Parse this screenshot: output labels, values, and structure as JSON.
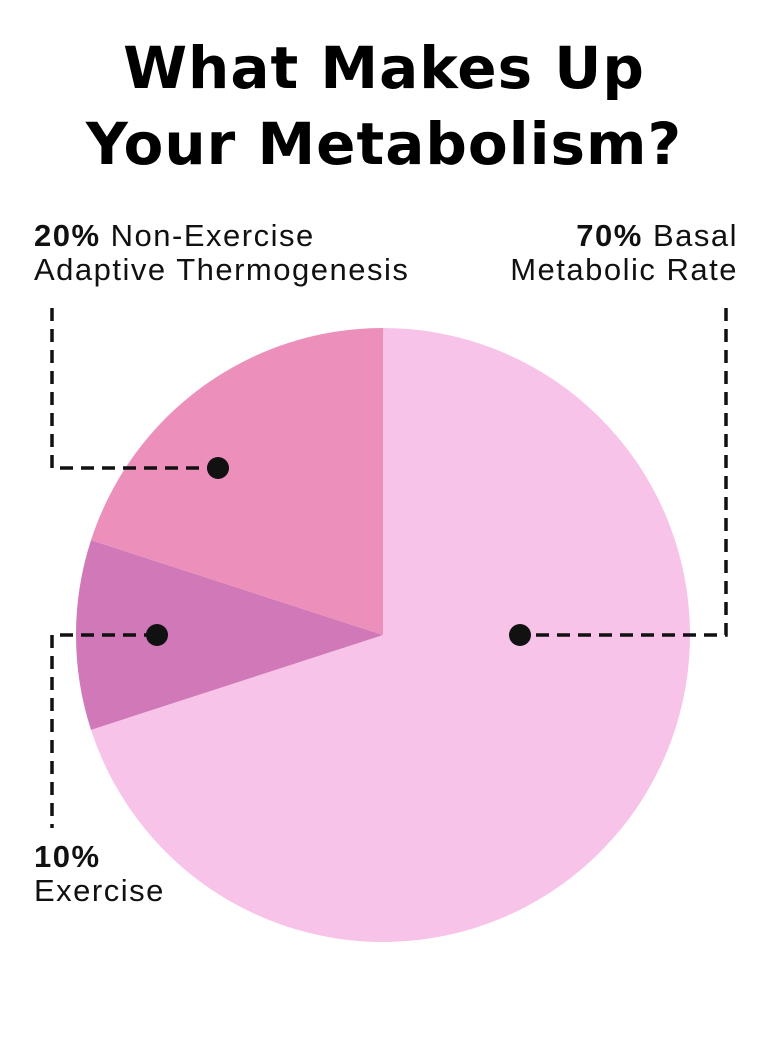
{
  "title": {
    "line1": "What Makes Up",
    "line2": "Your Metabolism?"
  },
  "chart_data": {
    "type": "pie",
    "title": "What Makes Up Your Metabolism?",
    "slices": [
      {
        "key": "bmr",
        "label": "Basal Metabolic Rate",
        "percent_label": "70%",
        "value": 70,
        "color": "#f7c3e8"
      },
      {
        "key": "exercise",
        "label": "Exercise",
        "percent_label": "10%",
        "value": 10,
        "color": "#d078b8"
      },
      {
        "key": "nea",
        "label": "Non-Exercise Adaptive Thermogenesis",
        "percent_label": "20%",
        "value": 20,
        "color": "#ec90bb"
      }
    ]
  },
  "labels": {
    "nea": {
      "pct": "20%",
      "line1": "Non-Exercise",
      "line2": "Adaptive Thermogenesis"
    },
    "bmr": {
      "pct": "70%",
      "line1": "Basal",
      "line2": "Metabolic Rate"
    },
    "exercise": {
      "pct": "10%",
      "line1": "Exercise"
    }
  },
  "colors": {
    "leader": "#111111",
    "background": "#ffffff"
  }
}
